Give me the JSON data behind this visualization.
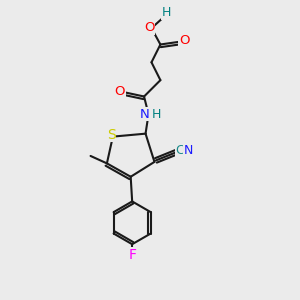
{
  "background_color": "#ebebeb",
  "bond_color": "#1a1a1a",
  "atom_colors": {
    "O": "#ff0000",
    "N": "#1a1aff",
    "S": "#cccc00",
    "C": "#1a8a8a",
    "F": "#ff00ff",
    "H": "#008080"
  },
  "figsize": [
    3.0,
    3.0
  ],
  "dpi": 100
}
